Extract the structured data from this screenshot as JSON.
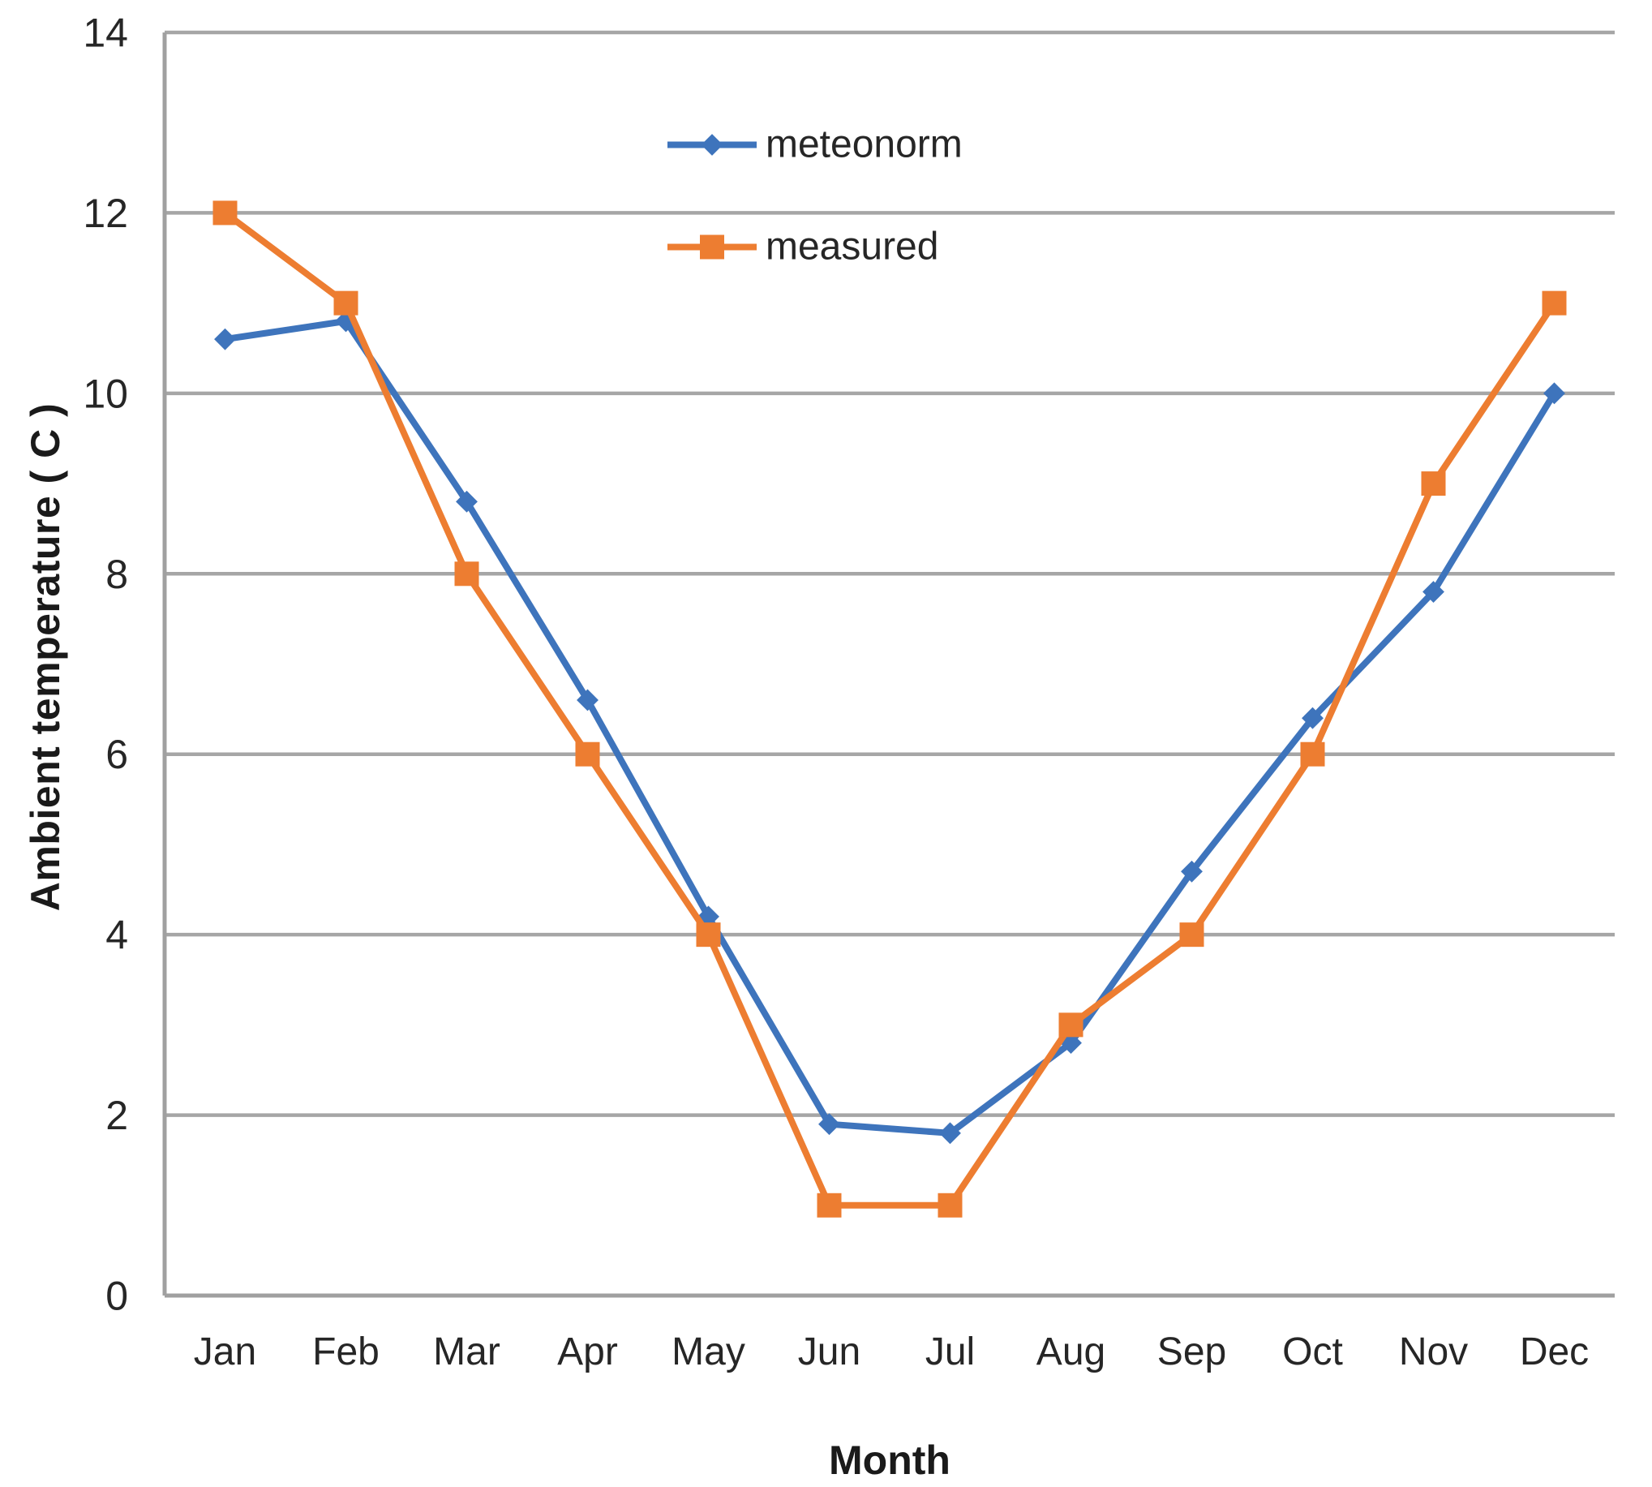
{
  "chart_data": {
    "type": "line",
    "title": "",
    "xlabel": "Month",
    "ylabel": "Ambient temperature ( C )",
    "categories": [
      "Jan",
      "Feb",
      "Mar",
      "Apr",
      "May",
      "Jun",
      "Jul",
      "Aug",
      "Sep",
      "Oct",
      "Nov",
      "Dec"
    ],
    "series": [
      {
        "name": "meteonorm",
        "color": "#3E74BC",
        "marker": "diamond",
        "values": [
          10.6,
          10.8,
          8.8,
          6.6,
          4.2,
          1.9,
          1.8,
          2.8,
          4.7,
          6.4,
          7.8,
          10
        ]
      },
      {
        "name": "measured",
        "color": "#ED7D31",
        "marker": "square",
        "values": [
          12,
          11,
          8,
          6,
          4,
          1,
          1,
          3,
          4,
          6,
          9,
          11
        ]
      }
    ],
    "ylim": [
      0,
      14
    ],
    "yticks": [
      0,
      2,
      4,
      6,
      8,
      10,
      12,
      14
    ],
    "grid": true,
    "legend_position": "top-center",
    "gridline_color": "#A6A6A6",
    "axis_color": "#A0A0A0",
    "text_color": "#262626"
  }
}
